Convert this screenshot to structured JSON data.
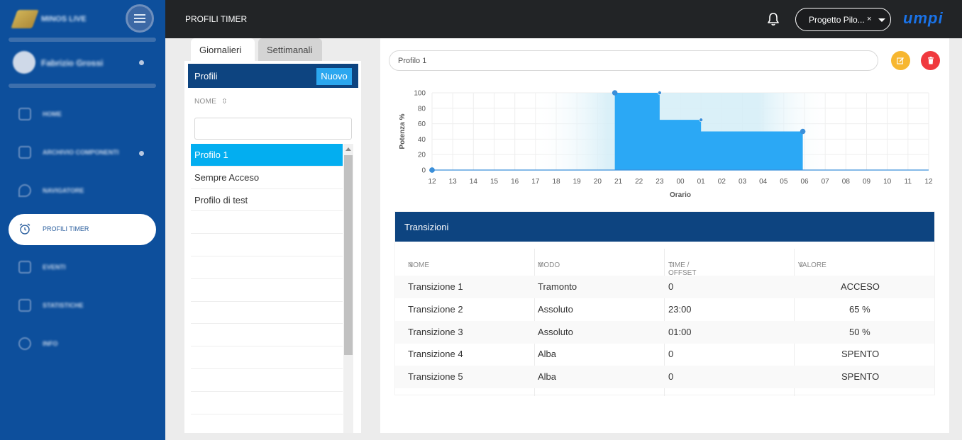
{
  "sidebar": {
    "app_name": "MINOS LIVE",
    "user_name": "Fabrizio Grossi",
    "items": [
      {
        "label": "HOME"
      },
      {
        "label": "ARCHIVIO COMPONENTI"
      },
      {
        "label": "NAVIGATORE"
      },
      {
        "label": "PROFILI TIMER"
      },
      {
        "label": "EVENTI"
      },
      {
        "label": "STATISTICHE"
      },
      {
        "label": "INFO"
      }
    ]
  },
  "topbar": {
    "title": "PROFILI TIMER",
    "project": "Progetto Pilo...",
    "project_clear": "×",
    "brand": "umpi"
  },
  "tabs": [
    "Giornalieri",
    "Settimanali"
  ],
  "profiles_panel": {
    "title": "Profili",
    "new_button": "Nuovo",
    "column": "NOME",
    "search_value": "",
    "items": [
      "Profilo 1",
      "Sempre Acceso",
      "Profilo di test"
    ],
    "selected": "Profilo 1"
  },
  "profile": {
    "name": "Profilo 1"
  },
  "chart_data": {
    "type": "area",
    "xlabel": "Orario",
    "ylabel": "Potenza %",
    "x_ticks": [
      "12",
      "13",
      "14",
      "15",
      "16",
      "17",
      "18",
      "19",
      "20",
      "21",
      "22",
      "23",
      "00",
      "01",
      "02",
      "03",
      "04",
      "05",
      "06",
      "07",
      "08",
      "09",
      "10",
      "11",
      "12"
    ],
    "y_ticks": [
      "0",
      "20",
      "40",
      "60",
      "80",
      "100"
    ],
    "ylim": [
      0,
      100
    ],
    "series": [
      {
        "points": [
          {
            "x": "12:00",
            "y": 0
          },
          {
            "x": "20:50",
            "y": 0
          },
          {
            "x": "20:50",
            "y": 100
          },
          {
            "x": "23:00",
            "y": 100
          },
          {
            "x": "23:00",
            "y": 65
          },
          {
            "x": "01:00",
            "y": 65
          },
          {
            "x": "01:00",
            "y": 50
          },
          {
            "x": "05:55",
            "y": 50
          },
          {
            "x": "05:55",
            "y": 0
          },
          {
            "x": "12:00",
            "y": 0
          }
        ]
      }
    ],
    "colors": {
      "fill": "#2ba8f5",
      "line": "#3b8fd9",
      "night_band": "#d6eef7"
    }
  },
  "transitions": {
    "title": "Transizioni",
    "columns": [
      "NOME",
      "MODO",
      "TIME / OFFSET",
      "VALORE"
    ],
    "rows": [
      [
        "Transizione 1",
        "Tramonto",
        "0",
        "ACCESO"
      ],
      [
        "Transizione 2",
        "Assoluto",
        "23:00",
        "65 %"
      ],
      [
        "Transizione 3",
        "Assoluto",
        "01:00",
        "50 %"
      ],
      [
        "Transizione 4",
        "Alba",
        "0",
        "SPENTO"
      ],
      [
        "Transizione 5",
        "Alba",
        "0",
        "SPENTO"
      ]
    ]
  }
}
